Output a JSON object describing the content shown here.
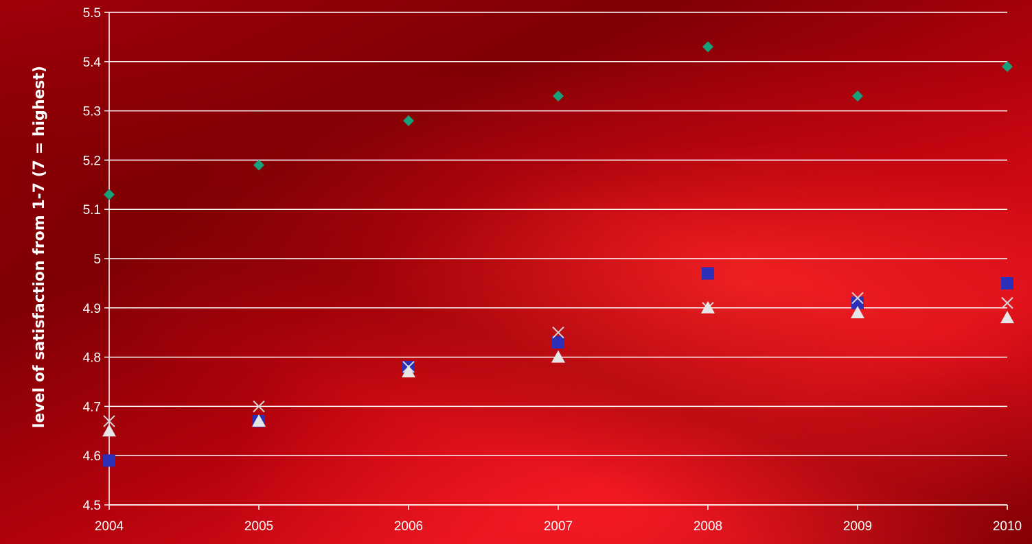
{
  "chart_data": {
    "type": "scatter",
    "title": "",
    "xlabel": "",
    "ylabel": "level of satisfaction from 1-7  (7 = highest)",
    "x": [
      2004,
      2005,
      2006,
      2007,
      2008,
      2009,
      2010
    ],
    "x_tick_labels": [
      "2004",
      "2005",
      "2006",
      "2007",
      "2008",
      "2009",
      "2010"
    ],
    "ylim": [
      4.5,
      5.5
    ],
    "y_ticks": [
      4.5,
      4.6,
      4.7,
      4.8,
      4.9,
      5,
      5.1,
      5.2,
      5.3,
      5.4,
      5.5
    ],
    "y_tick_labels": [
      "4.5",
      "4.6",
      "4.7",
      "4.8",
      "4.9",
      "5",
      "5.1",
      "5.2",
      "5.3",
      "5.4",
      "5.5"
    ],
    "grid": true,
    "legend": "none",
    "series": [
      {
        "marker": "diamond",
        "color": "#17a07a",
        "values": [
          5.13,
          5.19,
          5.28,
          5.33,
          5.43,
          5.33,
          5.39
        ]
      },
      {
        "marker": "square",
        "color": "#2c2fb8",
        "values": [
          4.59,
          4.67,
          4.78,
          4.83,
          4.97,
          4.91,
          4.95
        ]
      },
      {
        "marker": "x",
        "color": "#d8d8d8",
        "values": [
          4.67,
          4.7,
          4.78,
          4.85,
          4.9,
          4.92,
          4.91
        ]
      },
      {
        "marker": "triangle",
        "color": "#e6e6e6",
        "values": [
          4.65,
          4.67,
          4.77,
          4.8,
          4.9,
          4.89,
          4.88
        ]
      }
    ]
  }
}
